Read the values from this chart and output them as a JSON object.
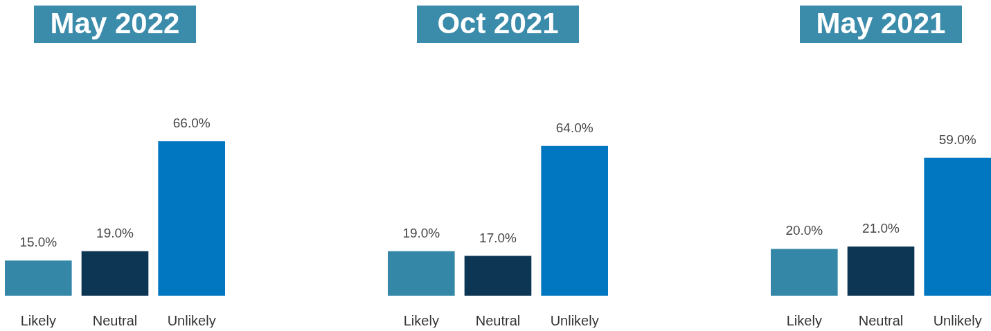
{
  "chart_data": [
    {
      "type": "bar",
      "title": "May 2022",
      "categories": [
        "Likely",
        "Neutral",
        "Unlikely"
      ],
      "values": [
        15.0,
        19.0,
        66.0
      ],
      "colors": [
        "#3587a8",
        "#0d3654",
        "#0077c0"
      ],
      "value_labels": [
        "15.0%",
        "19.0%",
        "66.0%"
      ]
    },
    {
      "type": "bar",
      "title": "Oct 2021",
      "categories": [
        "Likely",
        "Neutral",
        "Unlikely"
      ],
      "values": [
        19.0,
        17.0,
        64.0
      ],
      "colors": [
        "#3587a8",
        "#0d3654",
        "#0077c0"
      ],
      "value_labels": [
        "19.0%",
        "17.0%",
        "64.0%"
      ]
    },
    {
      "type": "bar",
      "title": "May 2021",
      "categories": [
        "Likely",
        "Neutral",
        "Unlikely"
      ],
      "values": [
        20.0,
        21.0,
        59.0
      ],
      "colors": [
        "#3587a8",
        "#0d3654",
        "#0077c0"
      ],
      "value_labels": [
        "20.0%",
        "21.0%",
        "59.0%"
      ]
    }
  ]
}
